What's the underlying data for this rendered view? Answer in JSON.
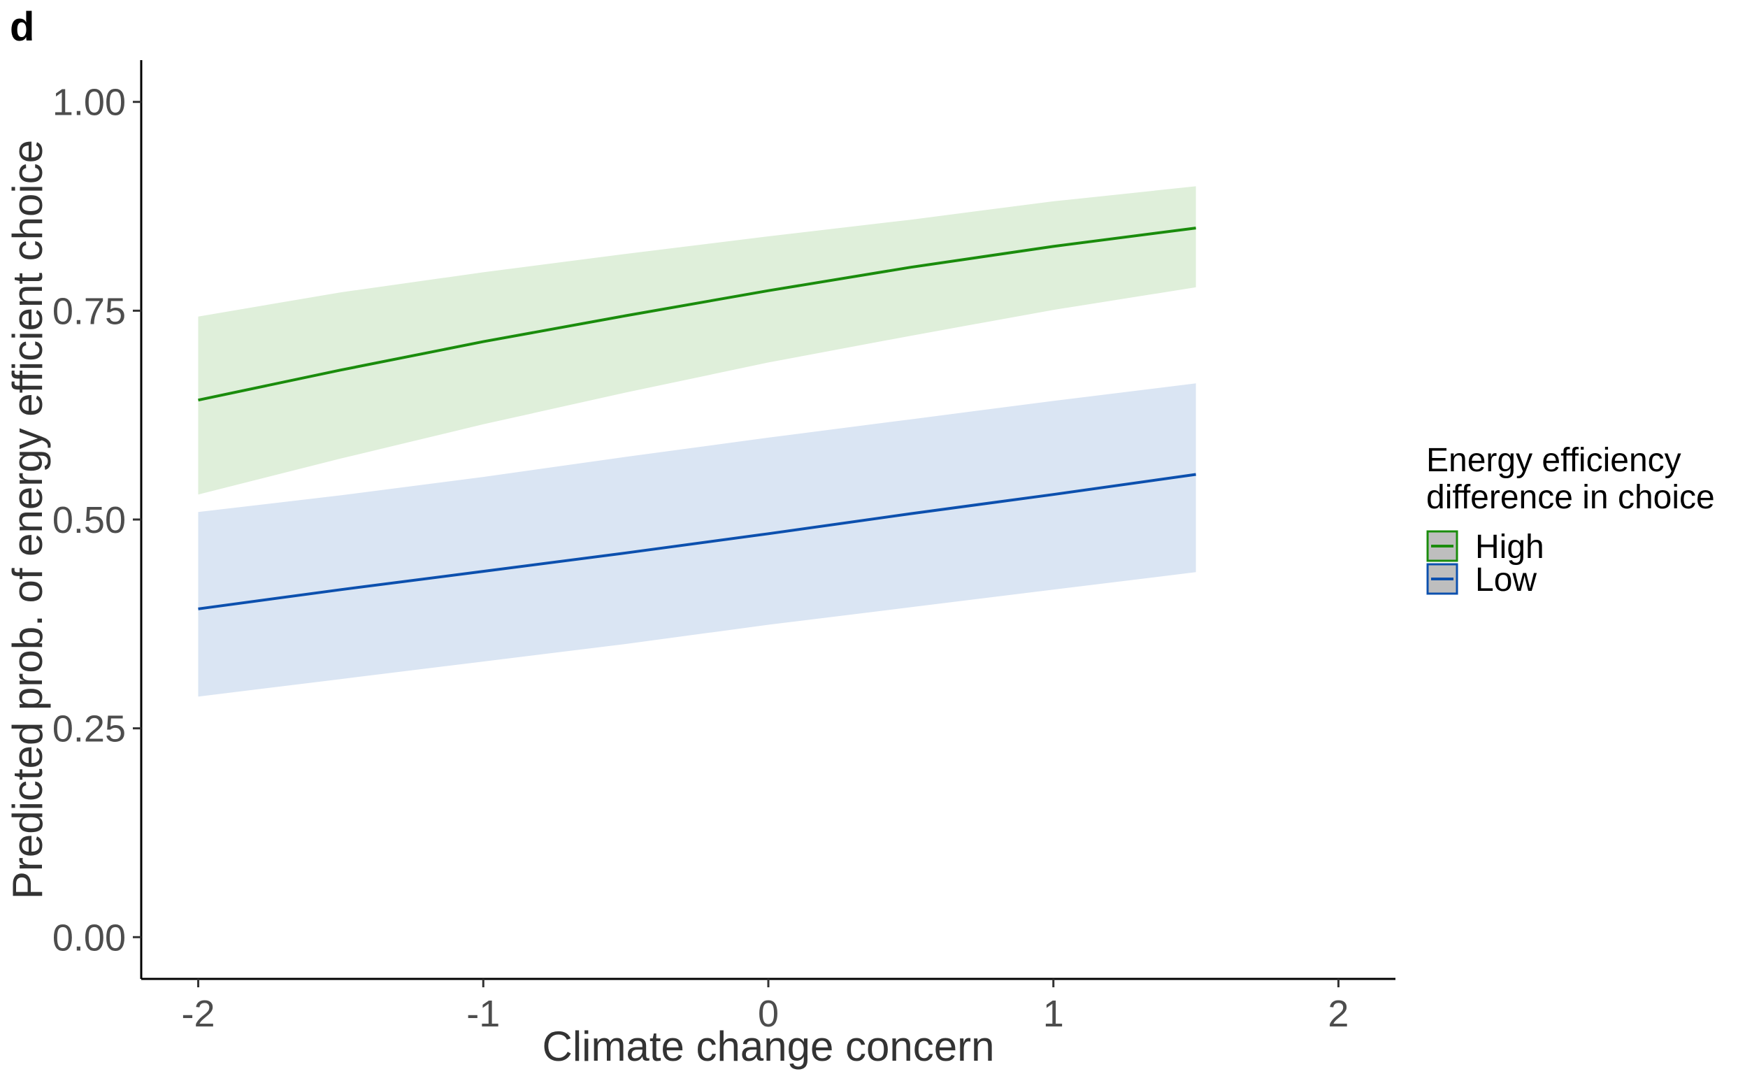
{
  "chart_data": {
    "type": "line",
    "panel_label": "d",
    "xlabel": "Climate change concern",
    "ylabel": "Predicted prob. of energy efficient choice",
    "xlim": [
      -2.2,
      2.2
    ],
    "ylim": [
      -0.05,
      1.05
    ],
    "xticks": [
      -2,
      -1,
      0,
      1,
      2
    ],
    "xtick_labels": [
      "-2",
      "-1",
      "0",
      "1",
      "2"
    ],
    "yticks": [
      0,
      0.25,
      0.5,
      0.75,
      1.0
    ],
    "ytick_labels": [
      "0.00",
      "0.25",
      "0.50",
      "0.75",
      "1.00"
    ],
    "grid": false,
    "legend": {
      "title_line1": "Energy efficiency",
      "title_line2": "difference in choice",
      "placement": "right"
    },
    "x": [
      -2.0,
      -1.5,
      -1.0,
      -0.5,
      0.0,
      0.5,
      1.0,
      1.5
    ],
    "series": [
      {
        "name": "High",
        "color": "#1a8c0c",
        "fill": "#dfefda",
        "values": [
          0.643,
          0.679,
          0.713,
          0.744,
          0.774,
          0.802,
          0.827,
          0.849
        ],
        "lower": [
          0.53,
          0.573,
          0.614,
          0.652,
          0.688,
          0.72,
          0.751,
          0.778
        ],
        "upper": [
          0.743,
          0.772,
          0.796,
          0.818,
          0.839,
          0.859,
          0.881,
          0.899
        ]
      },
      {
        "name": "Low",
        "color": "#0c50ae",
        "fill": "#dae5f3",
        "values": [
          0.393,
          0.416,
          0.438,
          0.46,
          0.483,
          0.507,
          0.53,
          0.554
        ],
        "lower": [
          0.288,
          0.309,
          0.33,
          0.351,
          0.374,
          0.395,
          0.416,
          0.437
        ],
        "upper": [
          0.509,
          0.529,
          0.551,
          0.575,
          0.598,
          0.62,
          0.642,
          0.663
        ]
      }
    ]
  }
}
